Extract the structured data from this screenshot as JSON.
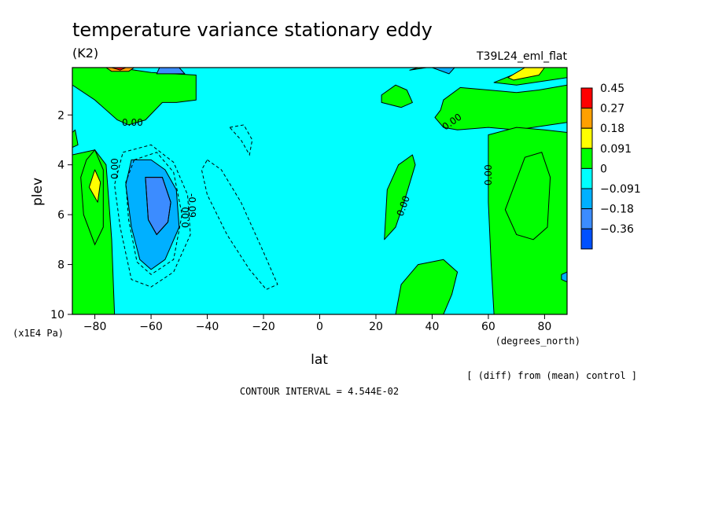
{
  "chart_data": {
    "type": "contour",
    "title": "temperature variance stationary eddy",
    "units": "(K2)",
    "run_label": "T39L24_eml_flat",
    "xlabel": "lat",
    "x_units": "(degrees_north)",
    "ylabel": "plev",
    "y_units": "(x1E4 Pa)",
    "x_ticks": [
      -80,
      -60,
      -40,
      -20,
      0,
      20,
      40,
      60,
      80
    ],
    "y_ticks": [
      2,
      4,
      6,
      8,
      10
    ],
    "xlim": [
      -88,
      88
    ],
    "ylim": [
      10,
      0.1
    ],
    "levels_labels": [
      "0.45",
      "0.27",
      "0.18",
      "0.091",
      "0",
      "−0.091",
      "−0.18",
      "−0.36"
    ],
    "level_colors": [
      "#ff0000",
      "#ffa000",
      "#ffff00",
      "#00ff00",
      "#00ffff",
      "#00b0ff",
      "#3c8cff",
      "#0050ff"
    ],
    "contour_labels": [
      "0.00",
      "0.00",
      "0.00",
      "0.00",
      "0.00",
      "0.00",
      "-0.09"
    ],
    "note": "[ (diff) from (mean) control ]",
    "contour_interval": "CONTOUR INTERVAL = 4.544E-02",
    "regions": [
      {
        "class": "green",
        "points": [
          [
            -88,
            0.1
          ],
          [
            -72,
            0.1
          ],
          [
            -60,
            0.3
          ],
          [
            -44,
            0.4
          ],
          [
            -44,
            1.4
          ],
          [
            -51,
            1.5
          ],
          [
            -56,
            1.5
          ],
          [
            -62,
            2.2
          ],
          [
            -68,
            2.4
          ],
          [
            -72,
            2.2
          ],
          [
            -80,
            1.4
          ],
          [
            -88,
            0.8
          ]
        ]
      },
      {
        "class": "green",
        "points": [
          [
            -88,
            3.6
          ],
          [
            -80,
            3.4
          ],
          [
            -76,
            4.0
          ],
          [
            -74,
            7.0
          ],
          [
            -73,
            10
          ],
          [
            -88,
            10
          ]
        ]
      },
      {
        "class": "green",
        "points": [
          [
            -88,
            2.7
          ],
          [
            -87,
            2.6
          ],
          [
            -86,
            3.2
          ],
          [
            -88,
            3.3
          ]
        ]
      },
      {
        "class": "green",
        "points": [
          [
            35,
            0.1
          ],
          [
            38,
            0.1
          ],
          [
            32,
            0.2
          ]
        ]
      },
      {
        "class": "green",
        "points": [
          [
            75,
            0.1
          ],
          [
            88,
            0.1
          ],
          [
            88,
            0.5
          ],
          [
            70,
            0.8
          ],
          [
            62,
            0.7
          ]
        ]
      },
      {
        "class": "green",
        "points": [
          [
            22,
            1.2
          ],
          [
            27,
            0.8
          ],
          [
            31,
            1.0
          ],
          [
            33,
            1.5
          ],
          [
            29,
            1.7
          ],
          [
            22,
            1.5
          ]
        ]
      },
      {
        "class": "green",
        "points": [
          [
            44,
            1.4
          ],
          [
            50,
            0.9
          ],
          [
            60,
            1.0
          ],
          [
            70,
            1.1
          ],
          [
            78,
            1.0
          ],
          [
            88,
            0.8
          ],
          [
            88,
            2.3
          ],
          [
            82,
            2.4
          ],
          [
            70,
            2.6
          ],
          [
            60,
            2.5
          ],
          [
            49,
            2.6
          ],
          [
            44,
            2.5
          ],
          [
            41,
            2.1
          ],
          [
            43,
            1.8
          ]
        ]
      },
      {
        "class": "green",
        "points": [
          [
            60,
            2.8
          ],
          [
            70,
            2.5
          ],
          [
            80,
            2.6
          ],
          [
            88,
            2.7
          ],
          [
            88,
            10
          ],
          [
            62,
            10
          ],
          [
            61,
            8.0
          ],
          [
            60,
            5.5
          ]
        ]
      },
      {
        "class": "green",
        "points": [
          [
            23,
            7.0
          ],
          [
            24,
            5.0
          ],
          [
            28,
            4.0
          ],
          [
            33,
            3.6
          ],
          [
            34,
            4.0
          ],
          [
            30,
            5.5
          ],
          [
            27,
            6.5
          ]
        ]
      },
      {
        "class": "green",
        "points": [
          [
            27,
            10
          ],
          [
            29,
            8.8
          ],
          [
            35,
            8.0
          ],
          [
            44,
            7.8
          ],
          [
            49,
            8.3
          ],
          [
            47,
            9.2
          ],
          [
            44,
            10
          ]
        ]
      },
      {
        "class": "yellow",
        "points": [
          [
            -80,
            4.2
          ],
          [
            -78,
            4.7
          ],
          [
            -79,
            5.5
          ],
          [
            -82,
            4.9
          ]
        ]
      },
      {
        "class": "yellow",
        "points": [
          [
            67,
            0.5
          ],
          [
            73,
            0.1
          ],
          [
            80,
            0.1
          ],
          [
            78,
            0.4
          ],
          [
            69,
            0.6
          ]
        ]
      },
      {
        "class": "orange",
        "points": [
          [
            -76,
            0.1
          ],
          [
            -66,
            0.1
          ],
          [
            -68,
            0.25
          ],
          [
            -74,
            0.25
          ]
        ]
      },
      {
        "class": "red",
        "points": [
          [
            -74,
            0.1
          ],
          [
            -69,
            0.1
          ],
          [
            -71,
            0.2
          ]
        ]
      },
      {
        "class": "blue1",
        "points": [
          [
            -67,
            3.8
          ],
          [
            -60,
            3.8
          ],
          [
            -55,
            4.2
          ],
          [
            -51,
            5.0
          ],
          [
            -50,
            6.5
          ],
          [
            -55,
            7.8
          ],
          [
            -60,
            8.2
          ],
          [
            -64,
            7.8
          ],
          [
            -67,
            6.5
          ],
          [
            -69,
            4.8
          ]
        ]
      },
      {
        "class": "blue2",
        "points": [
          [
            -62,
            4.5
          ],
          [
            -56,
            4.5
          ],
          [
            -53,
            5.5
          ],
          [
            -54,
            6.3
          ],
          [
            -58,
            6.8
          ],
          [
            -61,
            6.2
          ]
        ]
      },
      {
        "class": "blue2",
        "points": [
          [
            -57,
            0.1
          ],
          [
            -50,
            0.1
          ],
          [
            -48,
            0.35
          ],
          [
            -58,
            0.35
          ]
        ]
      },
      {
        "class": "blue1",
        "points": [
          [
            40,
            0.1
          ],
          [
            48,
            0.1
          ],
          [
            46,
            0.35
          ]
        ]
      },
      {
        "class": "blue1",
        "points": [
          [
            86,
            8.4
          ],
          [
            88,
            8.3
          ],
          [
            88,
            8.7
          ],
          [
            86,
            8.6
          ]
        ]
      }
    ],
    "dashed_contours": [
      {
        "points": [
          [
            -70,
            3.5
          ],
          [
            -60,
            3.2
          ],
          [
            -52,
            3.9
          ],
          [
            -47,
            5.2
          ],
          [
            -46,
            6.8
          ],
          [
            -52,
            8.3
          ],
          [
            -60,
            8.9
          ],
          [
            -67,
            8.6
          ],
          [
            -71,
            6.5
          ],
          [
            -73,
            4.8
          ]
        ]
      },
      {
        "points": [
          [
            -66,
            3.8
          ],
          [
            -58,
            3.5
          ],
          [
            -52,
            4.3
          ],
          [
            -49,
            6.0
          ],
          [
            -52,
            7.8
          ],
          [
            -60,
            8.4
          ],
          [
            -65,
            7.9
          ],
          [
            -68,
            6.2
          ],
          [
            -69,
            4.7
          ]
        ]
      },
      {
        "points": [
          [
            -40,
            3.8
          ],
          [
            -35,
            4.2
          ],
          [
            -28,
            5.5
          ],
          [
            -20,
            7.5
          ],
          [
            -15,
            8.8
          ],
          [
            -19,
            9.0
          ],
          [
            -25,
            8.2
          ],
          [
            -33,
            6.8
          ],
          [
            -40,
            5.2
          ],
          [
            -42,
            4.2
          ]
        ]
      },
      {
        "points": [
          [
            -32,
            2.5
          ],
          [
            -27,
            2.4
          ],
          [
            -24,
            3.0
          ],
          [
            -25,
            3.6
          ],
          [
            -28,
            3.0
          ]
        ]
      }
    ],
    "solid_contours": [
      {
        "points": [
          [
            -62,
            4.5
          ],
          [
            -56,
            4.5
          ],
          [
            -53,
            5.5
          ],
          [
            -54,
            6.3
          ],
          [
            -58,
            6.8
          ],
          [
            -61,
            6.2
          ]
        ]
      },
      {
        "points": [
          [
            -83,
            3.8
          ],
          [
            -80,
            3.4
          ],
          [
            -77,
            4.2
          ],
          [
            -77,
            6.5
          ],
          [
            -80,
            7.2
          ],
          [
            -84,
            6.0
          ],
          [
            -85,
            4.5
          ]
        ]
      },
      {
        "points": [
          [
            66,
            5.8
          ],
          [
            73,
            3.7
          ],
          [
            79,
            3.5
          ],
          [
            82,
            4.5
          ],
          [
            81,
            6.5
          ],
          [
            76,
            7.0
          ],
          [
            70,
            6.8
          ]
        ]
      }
    ]
  }
}
